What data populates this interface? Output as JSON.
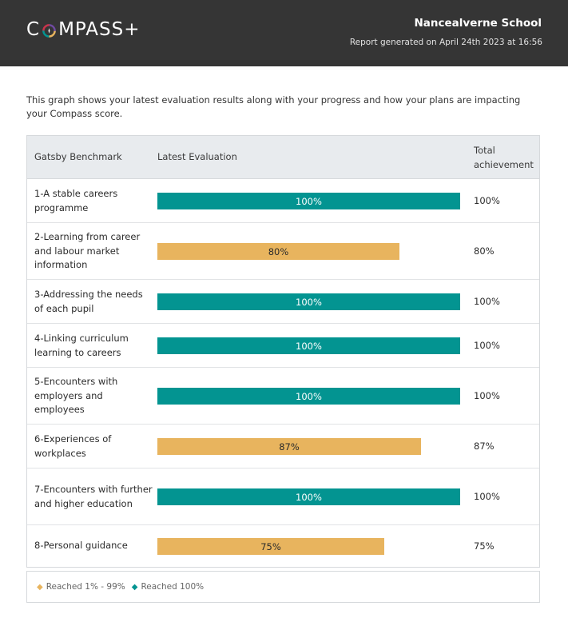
{
  "header": {
    "brand": "COMPASS+",
    "school_name": "Nancealverne School",
    "generated": "Report generated on April 24th 2023 at 16:56"
  },
  "intro": "This graph shows your latest evaluation results along with your progress and how your plans are impacting your Compass score.",
  "table": {
    "col_benchmark": "Gatsby Benchmark",
    "col_evaluation": "Latest Evaluation",
    "col_total_line1": "Total",
    "col_total_line2": "achievement",
    "rows": [
      {
        "benchmark": "1-A stable careers programme",
        "value": 100,
        "label": "100%",
        "total": "100%"
      },
      {
        "benchmark": "2-Learning from career and labour market information",
        "value": 80,
        "label": "80%",
        "total": "80%"
      },
      {
        "benchmark": "3-Addressing the needs of each pupil",
        "value": 100,
        "label": "100%",
        "total": "100%"
      },
      {
        "benchmark": "4-Linking curriculum learning to careers",
        "value": 100,
        "label": "100%",
        "total": "100%"
      },
      {
        "benchmark": "5-Encounters with employers and employees",
        "value": 100,
        "label": "100%",
        "total": "100%"
      },
      {
        "benchmark": "6-Experiences of workplaces",
        "value": 87,
        "label": "87%",
        "total": "87%"
      },
      {
        "benchmark": "7-Encounters with further and higher education",
        "value": 100,
        "label": "100%",
        "total": "100%"
      },
      {
        "benchmark": "8-Personal guidance",
        "value": 75,
        "label": "75%",
        "total": "75%"
      }
    ]
  },
  "legend": {
    "partial_label": "Reached 1% - 99%",
    "full_label": "Reached 100%",
    "partial_color": "#e8b45e",
    "full_color": "#039491"
  }
}
